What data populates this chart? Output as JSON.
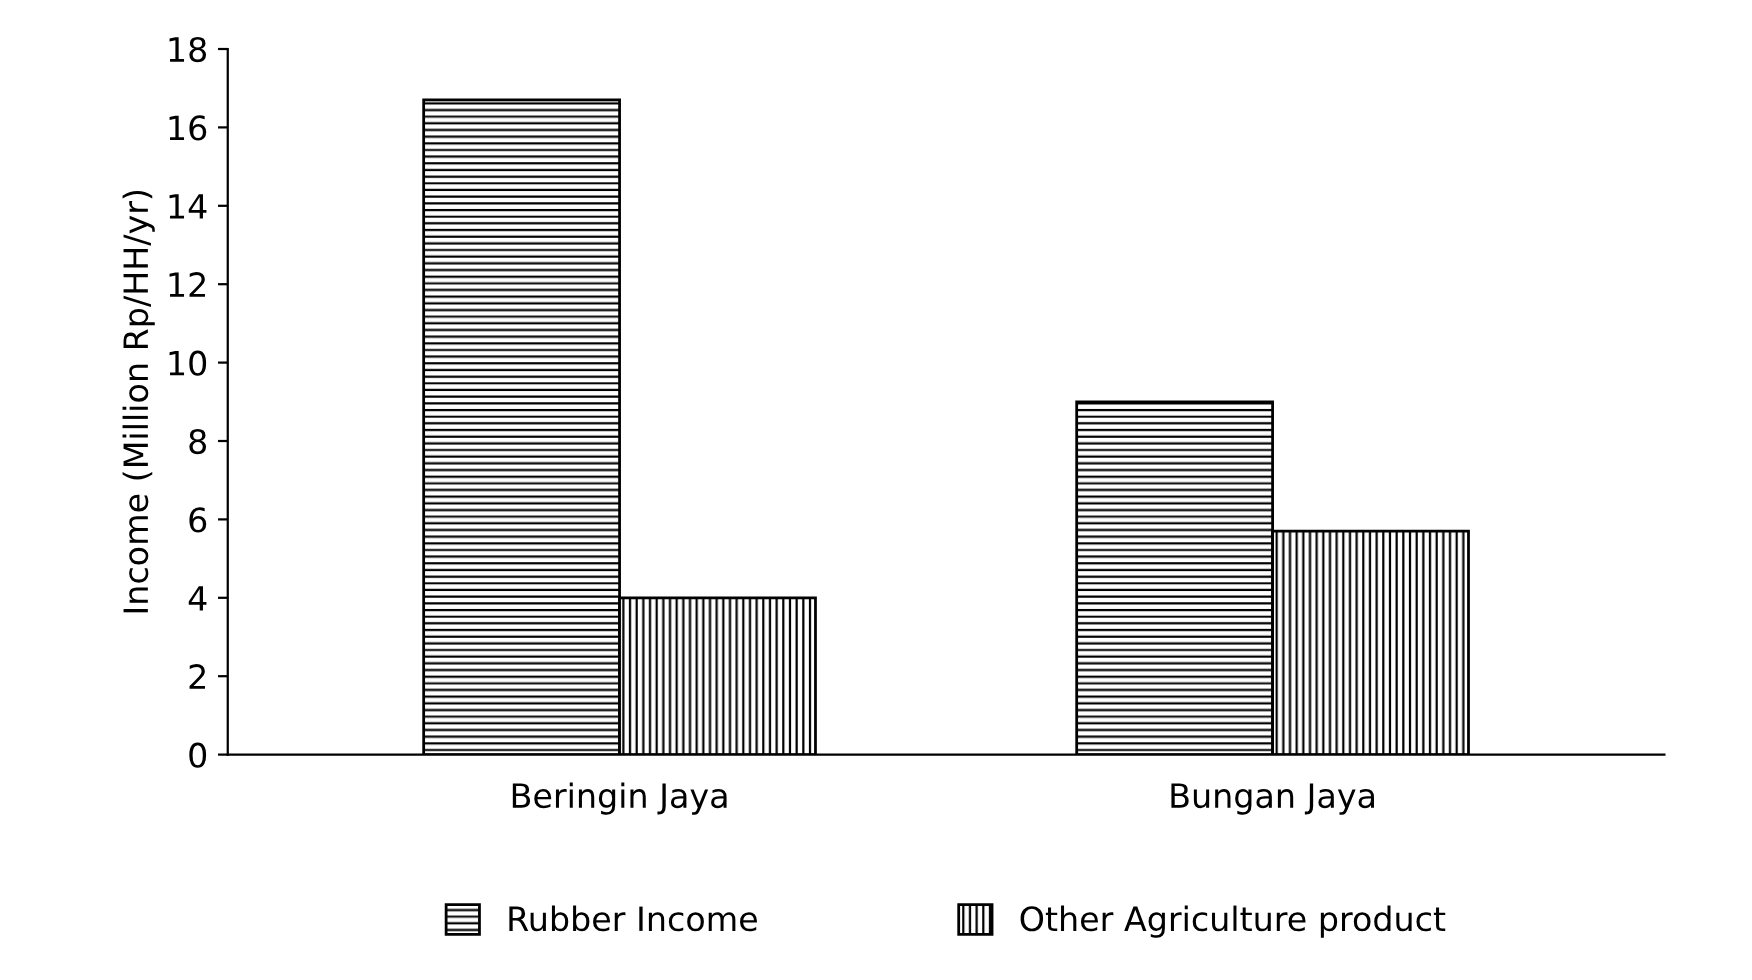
{
  "chart_data": {
    "type": "bar",
    "ylabel": "Income (Million Rp/HH/yr)",
    "categories": [
      "Beringin Jaya",
      "Bungan Jaya"
    ],
    "series": [
      {
        "name": "Rubber Income",
        "color": "#000000",
        "values": [
          16.7,
          9.0
        ]
      },
      {
        "name": "Other Agriculture product",
        "color": "#000000",
        "values": [
          4.0,
          5.7
        ]
      }
    ],
    "ylim": [
      0,
      18
    ],
    "yticks": [
      0,
      2,
      4,
      6,
      8,
      10,
      12,
      14,
      16,
      18
    ],
    "grid": false,
    "legend": "bottom"
  }
}
